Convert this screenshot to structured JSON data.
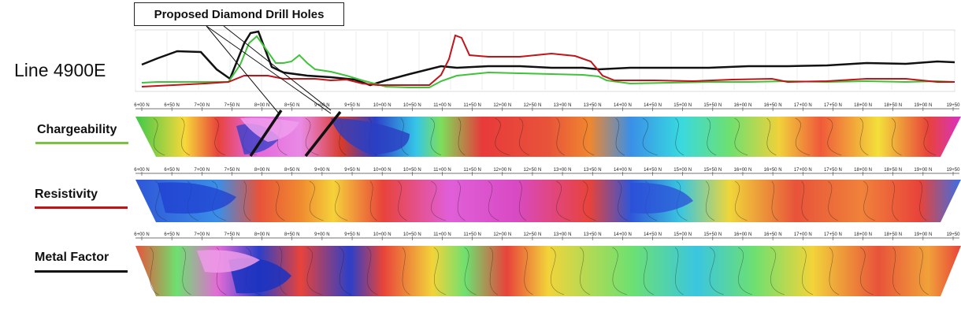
{
  "callout": {
    "text": "Proposed Diamond Drill Holes"
  },
  "line_title": "Line 4900E",
  "sections": [
    {
      "label": "Chargeability",
      "legend_color": "#7dc142"
    },
    {
      "label": "Resistivity",
      "legend_color": "#c0141b"
    },
    {
      "label": "Metal Factor",
      "legend_color": "#111111"
    }
  ],
  "station_labels": [
    "6+00 N",
    "6+50 N",
    "7+00 N",
    "7+50 N",
    "8+00 N",
    "8+50 N",
    "9+00 N",
    "9+50 N",
    "10+00 N",
    "10+50 N",
    "11+00 N",
    "11+50 N",
    "12+00 N",
    "12+50 N",
    "13+00 N",
    "13+50 N",
    "14+00 N",
    "14+50 N",
    "15+00 N",
    "15+50 N",
    "16+00 N",
    "16+50 N",
    "17+00 N",
    "17+50 N",
    "18+00 N",
    "18+50 N",
    "19+00 N",
    "19+50"
  ],
  "profile_colors": {
    "chargeability": "#3fc33a",
    "resistivity": "#c0141b",
    "metal_factor": "#111111"
  }
}
